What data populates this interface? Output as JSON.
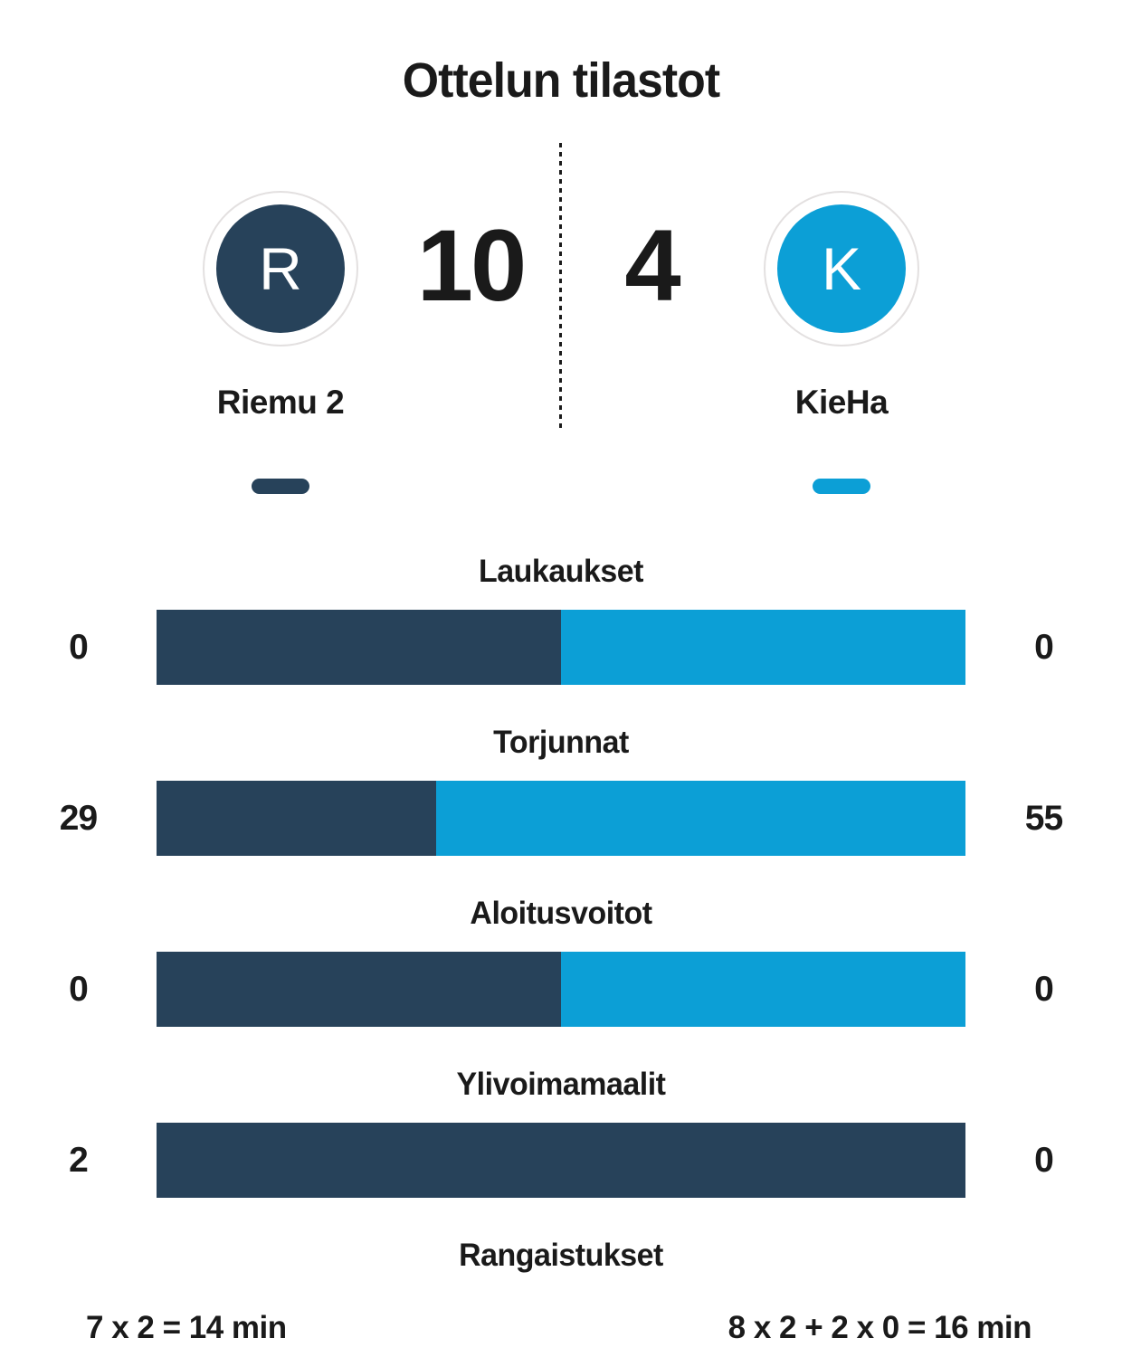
{
  "page": {
    "title": "Ottelun tilastot",
    "background": "#ffffff",
    "text_color": "#1a1a1a"
  },
  "teams": {
    "home": {
      "name": "Riemu 2",
      "initial": "R",
      "score": "10",
      "color": "#27425a"
    },
    "away": {
      "name": "KieHa",
      "initial": "K",
      "score": "4",
      "color": "#0c9fd6"
    }
  },
  "stats": {
    "rows": [
      {
        "label": "Laukaukset",
        "bar": true,
        "home": 0,
        "away": 0,
        "home_text": "0",
        "away_text": "0"
      },
      {
        "label": "Torjunnat",
        "bar": true,
        "home": 29,
        "away": 55,
        "home_text": "29",
        "away_text": "55"
      },
      {
        "label": "Aloitusvoitot",
        "bar": true,
        "home": 0,
        "away": 0,
        "home_text": "0",
        "away_text": "0"
      },
      {
        "label": "Ylivoimamaalit",
        "bar": true,
        "home": 2,
        "away": 0,
        "home_text": "2",
        "away_text": "0"
      },
      {
        "label": "Rangaistukset",
        "bar": false,
        "home_text": "7 x 2 = 14 min",
        "away_text": "8 x 2 + 2 x 0 = 16 min"
      }
    ]
  },
  "chart_data": {
    "type": "bar",
    "subtype": "split-horizontal-comparison",
    "title": "Ottelun tilastot",
    "legend_position": "top",
    "grid": false,
    "categories": [
      "Laukaukset",
      "Torjunnat",
      "Aloitusvoitot",
      "Ylivoimamaalit"
    ],
    "series": [
      {
        "name": "Riemu 2",
        "color": "#27425a",
        "values": [
          0,
          29,
          0,
          2
        ]
      },
      {
        "name": "KieHa",
        "color": "#0c9fd6",
        "values": [
          0,
          55,
          0,
          0
        ]
      }
    ],
    "score": {
      "home": 10,
      "away": 4
    },
    "text_rows": [
      {
        "category": "Rangaistukset",
        "home": "7 x 2 = 14 min",
        "away": "8 x 2 + 2 x 0 = 16 min"
      }
    ],
    "split_rule": "segment width = home/(home+away); 50/50 when both are 0"
  }
}
